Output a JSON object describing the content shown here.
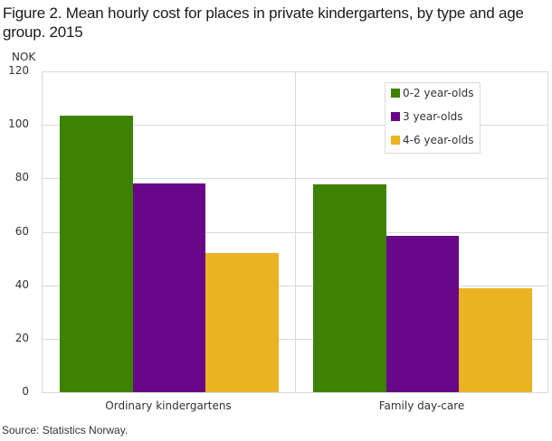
{
  "title": "Figure 2. Mean hourly cost for places in private kindergartens, by type and age group. 2015",
  "unit": "NOK",
  "source": "Source: Statistics Norway.",
  "colors": {
    "s0": "#3d8200",
    "s1": "#680788",
    "s2": "#ebb221"
  },
  "legend": [
    "0-2 year-olds",
    "3 year-olds",
    "4-6 year-olds"
  ],
  "y_ticks": [
    "0",
    "20",
    "40",
    "60",
    "80",
    "100",
    "120"
  ],
  "categories": [
    "Ordinary kindergartens",
    "Family day-care"
  ],
  "chart_data": {
    "type": "bar",
    "title": "Figure 2. Mean hourly cost for places in private kindergartens, by type and age group. 2015",
    "xlabel": "",
    "ylabel": "NOK",
    "categories": [
      "Ordinary kindergartens",
      "Family day-care"
    ],
    "series": [
      {
        "name": "0-2 year-olds",
        "color": "#3d8200",
        "values": [
          103.5,
          77.6
        ]
      },
      {
        "name": "3 year-olds",
        "color": "#680788",
        "values": [
          78,
          58.5
        ]
      },
      {
        "name": "4-6 year-olds",
        "color": "#ebb221",
        "values": [
          52.2,
          38.8
        ]
      }
    ],
    "ylim": [
      0,
      120
    ],
    "yticks": [
      0,
      20,
      40,
      60,
      80,
      100,
      120
    ],
    "grid": true,
    "legend_position": "upper right (inside)",
    "source": "Source: Statistics Norway."
  }
}
